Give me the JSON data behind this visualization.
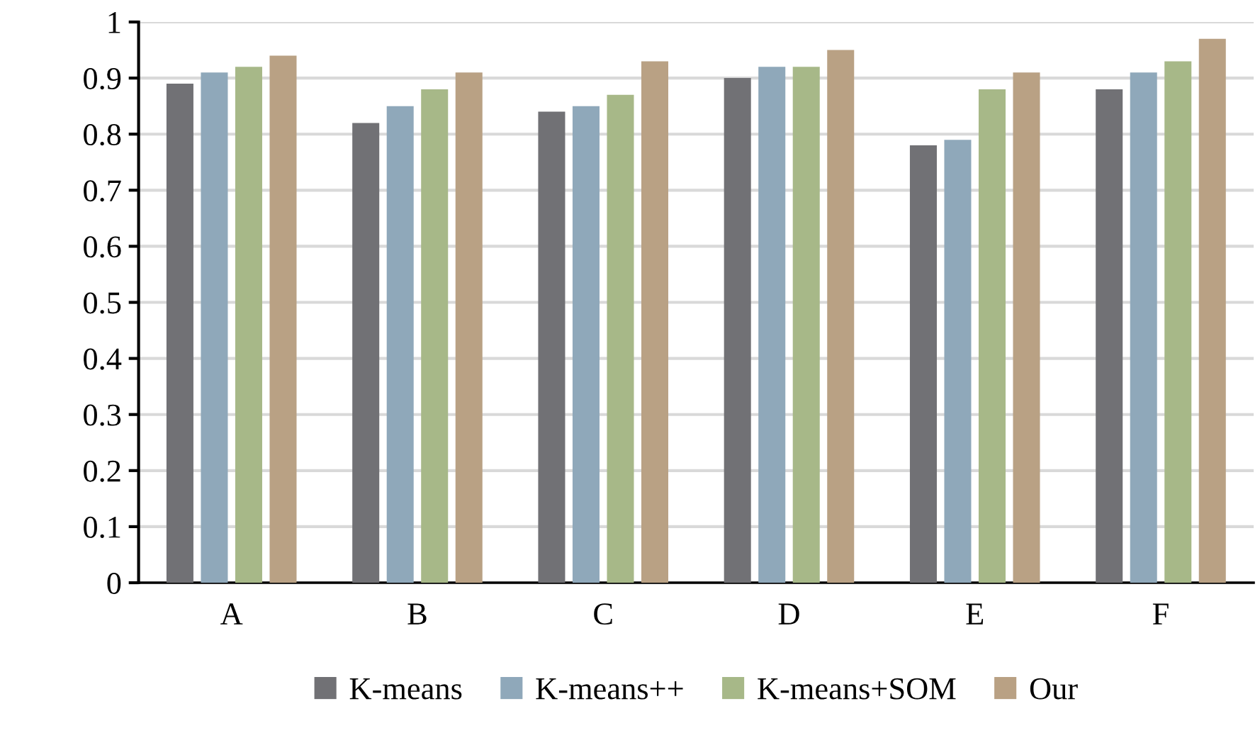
{
  "chart_data": {
    "type": "bar",
    "categories": [
      "A",
      "B",
      "C",
      "D",
      "E",
      "F"
    ],
    "series": [
      {
        "name": "K-means",
        "color": "#717175",
        "values": [
          0.89,
          0.82,
          0.84,
          0.9,
          0.78,
          0.88
        ]
      },
      {
        "name": "K-means++",
        "color": "#8fa8ba",
        "values": [
          0.91,
          0.85,
          0.85,
          0.92,
          0.79,
          0.91
        ]
      },
      {
        "name": "K-means+SOM",
        "color": "#a7b888",
        "values": [
          0.92,
          0.88,
          0.87,
          0.92,
          0.88,
          0.93
        ]
      },
      {
        "name": "Our",
        "color": "#b9a184",
        "values": [
          0.94,
          0.91,
          0.93,
          0.95,
          0.91,
          0.97
        ]
      }
    ],
    "ylim": [
      0,
      1
    ],
    "yticks": [
      0,
      0.1,
      0.2,
      0.3,
      0.4,
      0.5,
      0.6,
      0.7,
      0.8,
      0.9,
      1
    ],
    "grid": "y",
    "legend": "bottom"
  }
}
